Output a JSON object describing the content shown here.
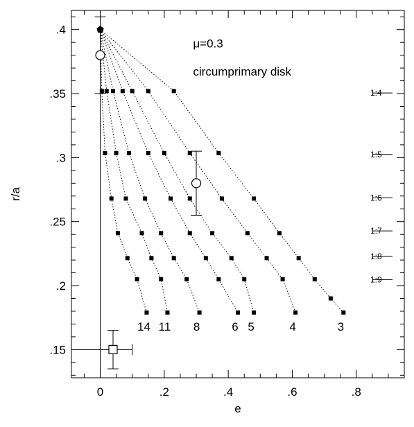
{
  "chart_data": {
    "type": "scatter",
    "title": "",
    "xlabel": "e",
    "ylabel": "r/a",
    "xlim": [
      -0.09,
      0.95
    ],
    "ylim": [
      0.128,
      0.415
    ],
    "grid": false,
    "x_ticks": [
      {
        "value": 0,
        "label": "0"
      },
      {
        "value": 0.2,
        "label": ".2"
      },
      {
        "value": 0.4,
        "label": ".4"
      },
      {
        "value": 0.6,
        "label": ".6"
      },
      {
        "value": 0.8,
        "label": ".8"
      }
    ],
    "y_ticks": [
      {
        "value": 0.15,
        "label": ".15"
      },
      {
        "value": 0.2,
        "label": ".2"
      },
      {
        "value": 0.25,
        "label": ".25"
      },
      {
        "value": 0.3,
        "label": ".3"
      },
      {
        "value": 0.35,
        "label": ".35"
      },
      {
        "value": 0.4,
        "label": ".4"
      }
    ],
    "annotations": [
      {
        "text": "μ=0.3",
        "x": 0.29,
        "y": 0.386
      },
      {
        "text": "circumprimary disk",
        "x": 0.29,
        "y": 0.364
      }
    ],
    "resonances": [
      {
        "label": "1:4",
        "y": 0.3505
      },
      {
        "label": "1:5",
        "y": 0.3025
      },
      {
        "label": "1:6",
        "y": 0.2686
      },
      {
        "label": "1:7",
        "y": 0.2427
      },
      {
        "label": "1:8",
        "y": 0.2228
      },
      {
        "label": "1:9",
        "y": 0.2047
      }
    ],
    "apex": {
      "x": 0,
      "y": 0.4
    },
    "series": [
      {
        "name": "3",
        "x": [
          0,
          0.23,
          0.37,
          0.48,
          0.56,
          0.62,
          0.67,
          0.72,
          0.76
        ],
        "y": [
          0.4,
          0.352,
          0.3035,
          0.268,
          0.241,
          0.2215,
          0.205,
          0.19,
          0.179
        ]
      },
      {
        "name": "4",
        "x": [
          0,
          0.15,
          0.28,
          0.38,
          0.46,
          0.52,
          0.57,
          0.61
        ],
        "y": [
          0.4,
          0.352,
          0.3035,
          0.268,
          0.241,
          0.2215,
          0.205,
          0.179
        ]
      },
      {
        "name": "5",
        "x": [
          0,
          0.1,
          0.2,
          0.28,
          0.35,
          0.41,
          0.45,
          0.48
        ],
        "y": [
          0.4,
          0.352,
          0.3035,
          0.268,
          0.241,
          0.2215,
          0.205,
          0.179
        ]
      },
      {
        "name": "6",
        "x": [
          0,
          0.07,
          0.15,
          0.22,
          0.28,
          0.33,
          0.37,
          0.43
        ],
        "y": [
          0.4,
          0.352,
          0.3035,
          0.268,
          0.241,
          0.2215,
          0.205,
          0.179
        ]
      },
      {
        "name": "8",
        "x": [
          0,
          0.04,
          0.09,
          0.14,
          0.19,
          0.23,
          0.27,
          0.31
        ],
        "y": [
          0.4,
          0.352,
          0.3035,
          0.268,
          0.241,
          0.2215,
          0.205,
          0.179
        ]
      },
      {
        "name": "11",
        "x": [
          0,
          0.02,
          0.05,
          0.08,
          0.13,
          0.16,
          0.19,
          0.21
        ],
        "y": [
          0.4,
          0.352,
          0.3035,
          0.268,
          0.241,
          0.2215,
          0.205,
          0.179
        ]
      },
      {
        "name": "14",
        "x": [
          0,
          0.005,
          0.015,
          0.035,
          0.055,
          0.085,
          0.115,
          0.145
        ],
        "y": [
          0.4,
          0.352,
          0.3035,
          0.268,
          0.241,
          0.2215,
          0.205,
          0.179
        ]
      }
    ],
    "error_points": [
      {
        "x": 0,
        "y": 0.38,
        "y_lo": 0.35,
        "y_hi": 0.41,
        "marker": "circle"
      },
      {
        "x": 0.3,
        "y": 0.28,
        "y_lo": 0.255,
        "y_hi": 0.305,
        "marker": "circle"
      },
      {
        "x": 0.04,
        "y": 0.15,
        "y_lo": 0.135,
        "y_hi": 0.165,
        "x_lo": -0.07,
        "x_hi": 0.1,
        "marker": "square"
      }
    ]
  }
}
